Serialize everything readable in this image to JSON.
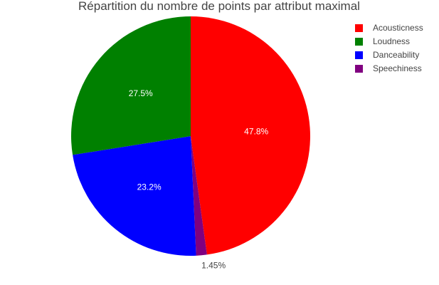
{
  "chart_data": {
    "type": "pie",
    "title": "Répartition du nombre de points par attribut maximal",
    "legend_position": "top-right",
    "direction": "clockwise",
    "start": "12 o'clock",
    "slices": [
      {
        "name": "Acousticness",
        "value": 47.8,
        "label": "47.8%",
        "color": "#ff0000",
        "label_position": "inside"
      },
      {
        "name": "Speechiness",
        "value": 1.45,
        "label": "1.45%",
        "color": "#800080",
        "label_position": "outside"
      },
      {
        "name": "Danceability",
        "value": 23.2,
        "label": "23.2%",
        "color": "#0000ff",
        "label_position": "inside"
      },
      {
        "name": "Loudness",
        "value": 27.5,
        "label": "27.5%",
        "color": "#008000",
        "label_position": "inside"
      }
    ],
    "legend": [
      {
        "name": "Acousticness",
        "color": "#ff0000"
      },
      {
        "name": "Loudness",
        "color": "#008000"
      },
      {
        "name": "Danceability",
        "color": "#0000ff"
      },
      {
        "name": "Speechiness",
        "color": "#800080"
      }
    ]
  }
}
